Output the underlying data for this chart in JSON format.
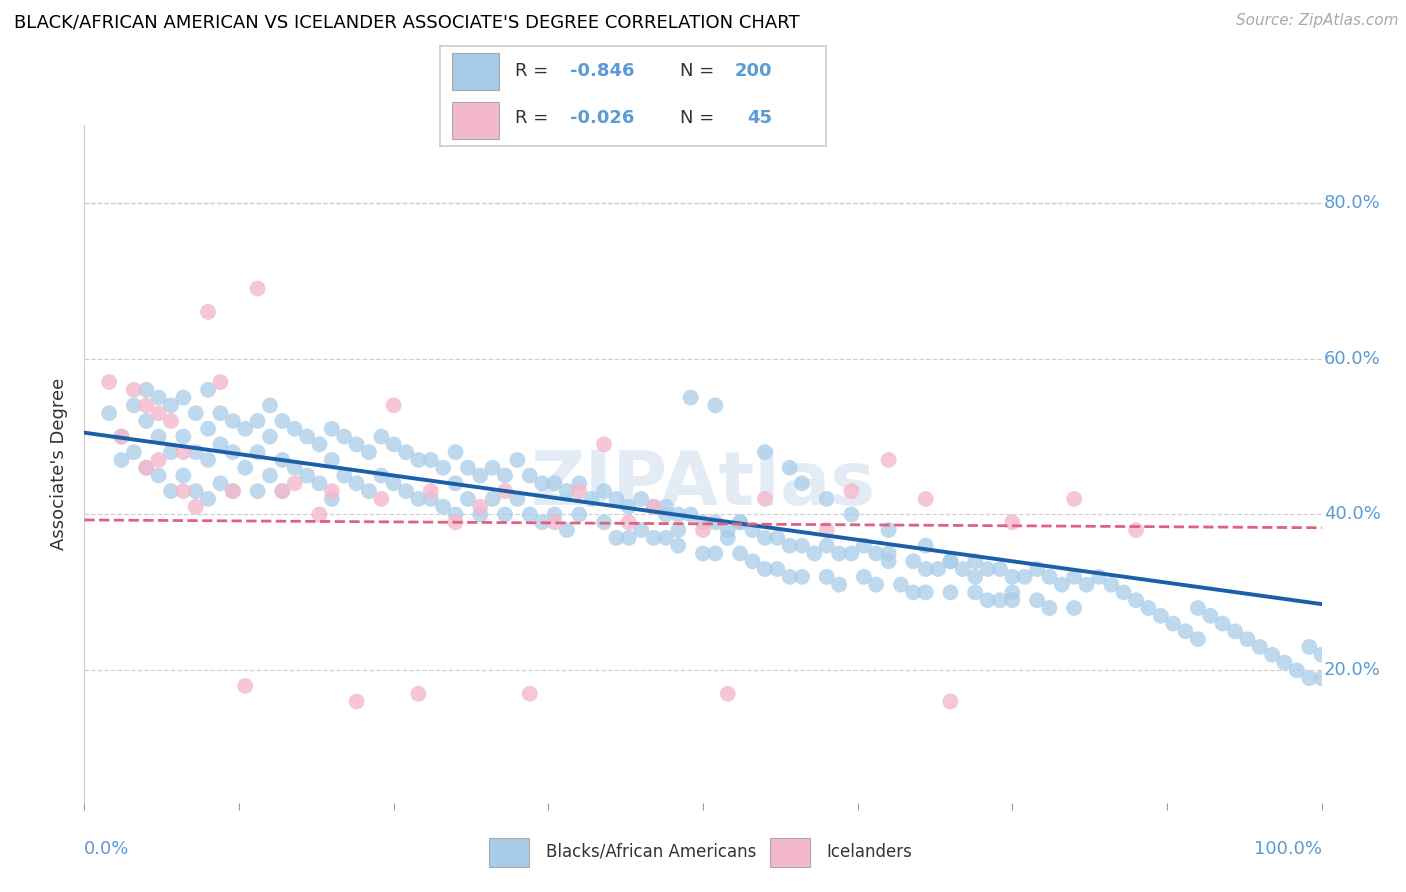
{
  "title": "BLACK/AFRICAN AMERICAN VS ICELANDER ASSOCIATE'S DEGREE CORRELATION CHART",
  "source": "Source: ZipAtlas.com",
  "ylabel": "Associate's Degree",
  "watermark": "ZIPAtlas",
  "legend_labels": [
    "Blacks/African Americans",
    "Icelanders"
  ],
  "r_blue": -0.846,
  "n_blue": 200,
  "r_pink": -0.026,
  "n_pink": 45,
  "blue_color": "#a8cce8",
  "pink_color": "#f4b8cc",
  "blue_line_color": "#1a5fa8",
  "pink_line_color": "#e06080",
  "axis_color": "#5b9bd5",
  "ytick_labels": [
    "20.0%",
    "40.0%",
    "60.0%",
    "80.0%"
  ],
  "ytick_values": [
    0.2,
    0.4,
    0.6,
    0.8
  ],
  "xlim": [
    0.0,
    1.0
  ],
  "ylim": [
    0.03,
    0.9
  ],
  "blue_line_start_y": 0.505,
  "blue_line_end_y": 0.285,
  "pink_line_start_y": 0.393,
  "pink_line_end_y": 0.383,
  "blue_scatter_x": [
    0.02,
    0.03,
    0.03,
    0.04,
    0.04,
    0.05,
    0.05,
    0.05,
    0.06,
    0.06,
    0.06,
    0.07,
    0.07,
    0.07,
    0.08,
    0.08,
    0.08,
    0.09,
    0.09,
    0.09,
    0.1,
    0.1,
    0.1,
    0.1,
    0.11,
    0.11,
    0.11,
    0.12,
    0.12,
    0.12,
    0.13,
    0.13,
    0.14,
    0.14,
    0.14,
    0.15,
    0.15,
    0.15,
    0.16,
    0.16,
    0.16,
    0.17,
    0.17,
    0.18,
    0.18,
    0.19,
    0.19,
    0.2,
    0.2,
    0.2,
    0.21,
    0.21,
    0.22,
    0.22,
    0.23,
    0.23,
    0.24,
    0.24,
    0.25,
    0.25,
    0.26,
    0.26,
    0.27,
    0.27,
    0.28,
    0.28,
    0.29,
    0.29,
    0.3,
    0.3,
    0.3,
    0.31,
    0.31,
    0.32,
    0.32,
    0.33,
    0.33,
    0.34,
    0.34,
    0.35,
    0.35,
    0.36,
    0.36,
    0.37,
    0.37,
    0.38,
    0.38,
    0.39,
    0.39,
    0.4,
    0.4,
    0.41,
    0.42,
    0.42,
    0.43,
    0.43,
    0.44,
    0.44,
    0.45,
    0.45,
    0.46,
    0.46,
    0.47,
    0.47,
    0.48,
    0.48,
    0.49,
    0.5,
    0.5,
    0.51,
    0.51,
    0.52,
    0.53,
    0.53,
    0.54,
    0.54,
    0.55,
    0.55,
    0.56,
    0.56,
    0.57,
    0.57,
    0.58,
    0.58,
    0.59,
    0.6,
    0.6,
    0.61,
    0.61,
    0.62,
    0.63,
    0.63,
    0.64,
    0.64,
    0.65,
    0.65,
    0.66,
    0.67,
    0.67,
    0.68,
    0.68,
    0.69,
    0.7,
    0.7,
    0.71,
    0.72,
    0.72,
    0.73,
    0.73,
    0.74,
    0.74,
    0.75,
    0.75,
    0.76,
    0.77,
    0.77,
    0.78,
    0.78,
    0.79,
    0.8,
    0.8,
    0.81,
    0.82,
    0.83,
    0.84,
    0.85,
    0.86,
    0.87,
    0.88,
    0.89,
    0.9,
    0.9,
    0.91,
    0.92,
    0.93,
    0.94,
    0.95,
    0.96,
    0.97,
    0.98,
    0.99,
    0.99,
    1.0,
    1.0,
    0.48,
    0.52,
    0.47,
    0.53,
    0.49,
    0.51,
    0.55,
    0.57,
    0.58,
    0.6,
    0.62,
    0.65,
    0.68,
    0.7,
    0.72,
    0.75
  ],
  "blue_scatter_y": [
    0.53,
    0.5,
    0.47,
    0.54,
    0.48,
    0.56,
    0.52,
    0.46,
    0.55,
    0.5,
    0.45,
    0.54,
    0.48,
    0.43,
    0.55,
    0.5,
    0.45,
    0.53,
    0.48,
    0.43,
    0.56,
    0.51,
    0.47,
    0.42,
    0.53,
    0.49,
    0.44,
    0.52,
    0.48,
    0.43,
    0.51,
    0.46,
    0.52,
    0.48,
    0.43,
    0.54,
    0.5,
    0.45,
    0.52,
    0.47,
    0.43,
    0.51,
    0.46,
    0.5,
    0.45,
    0.49,
    0.44,
    0.51,
    0.47,
    0.42,
    0.5,
    0.45,
    0.49,
    0.44,
    0.48,
    0.43,
    0.5,
    0.45,
    0.49,
    0.44,
    0.48,
    0.43,
    0.47,
    0.42,
    0.47,
    0.42,
    0.46,
    0.41,
    0.48,
    0.44,
    0.4,
    0.46,
    0.42,
    0.45,
    0.4,
    0.46,
    0.42,
    0.45,
    0.4,
    0.47,
    0.42,
    0.45,
    0.4,
    0.44,
    0.39,
    0.44,
    0.4,
    0.43,
    0.38,
    0.44,
    0.4,
    0.42,
    0.43,
    0.39,
    0.42,
    0.37,
    0.41,
    0.37,
    0.42,
    0.38,
    0.41,
    0.37,
    0.41,
    0.37,
    0.4,
    0.36,
    0.4,
    0.39,
    0.35,
    0.39,
    0.35,
    0.38,
    0.39,
    0.35,
    0.38,
    0.34,
    0.37,
    0.33,
    0.37,
    0.33,
    0.36,
    0.32,
    0.36,
    0.32,
    0.35,
    0.36,
    0.32,
    0.35,
    0.31,
    0.35,
    0.36,
    0.32,
    0.35,
    0.31,
    0.34,
    0.35,
    0.31,
    0.34,
    0.3,
    0.33,
    0.3,
    0.33,
    0.34,
    0.3,
    0.33,
    0.34,
    0.3,
    0.33,
    0.29,
    0.33,
    0.29,
    0.32,
    0.29,
    0.32,
    0.33,
    0.29,
    0.32,
    0.28,
    0.31,
    0.32,
    0.28,
    0.31,
    0.32,
    0.31,
    0.3,
    0.29,
    0.28,
    0.27,
    0.26,
    0.25,
    0.28,
    0.24,
    0.27,
    0.26,
    0.25,
    0.24,
    0.23,
    0.22,
    0.21,
    0.2,
    0.23,
    0.19,
    0.22,
    0.19,
    0.38,
    0.37,
    0.4,
    0.39,
    0.55,
    0.54,
    0.48,
    0.46,
    0.44,
    0.42,
    0.4,
    0.38,
    0.36,
    0.34,
    0.32,
    0.3
  ],
  "pink_scatter_x": [
    0.02,
    0.03,
    0.04,
    0.05,
    0.05,
    0.06,
    0.06,
    0.07,
    0.08,
    0.08,
    0.09,
    0.1,
    0.11,
    0.12,
    0.13,
    0.14,
    0.16,
    0.17,
    0.19,
    0.2,
    0.22,
    0.24,
    0.25,
    0.27,
    0.28,
    0.3,
    0.32,
    0.34,
    0.36,
    0.38,
    0.4,
    0.42,
    0.44,
    0.46,
    0.5,
    0.52,
    0.55,
    0.6,
    0.62,
    0.65,
    0.68,
    0.7,
    0.75,
    0.8,
    0.85
  ],
  "pink_scatter_y": [
    0.57,
    0.5,
    0.56,
    0.54,
    0.46,
    0.53,
    0.47,
    0.52,
    0.48,
    0.43,
    0.41,
    0.66,
    0.57,
    0.43,
    0.18,
    0.69,
    0.43,
    0.44,
    0.4,
    0.43,
    0.16,
    0.42,
    0.54,
    0.17,
    0.43,
    0.39,
    0.41,
    0.43,
    0.17,
    0.39,
    0.43,
    0.49,
    0.39,
    0.41,
    0.38,
    0.17,
    0.42,
    0.38,
    0.43,
    0.47,
    0.42,
    0.16,
    0.39,
    0.42,
    0.38
  ]
}
